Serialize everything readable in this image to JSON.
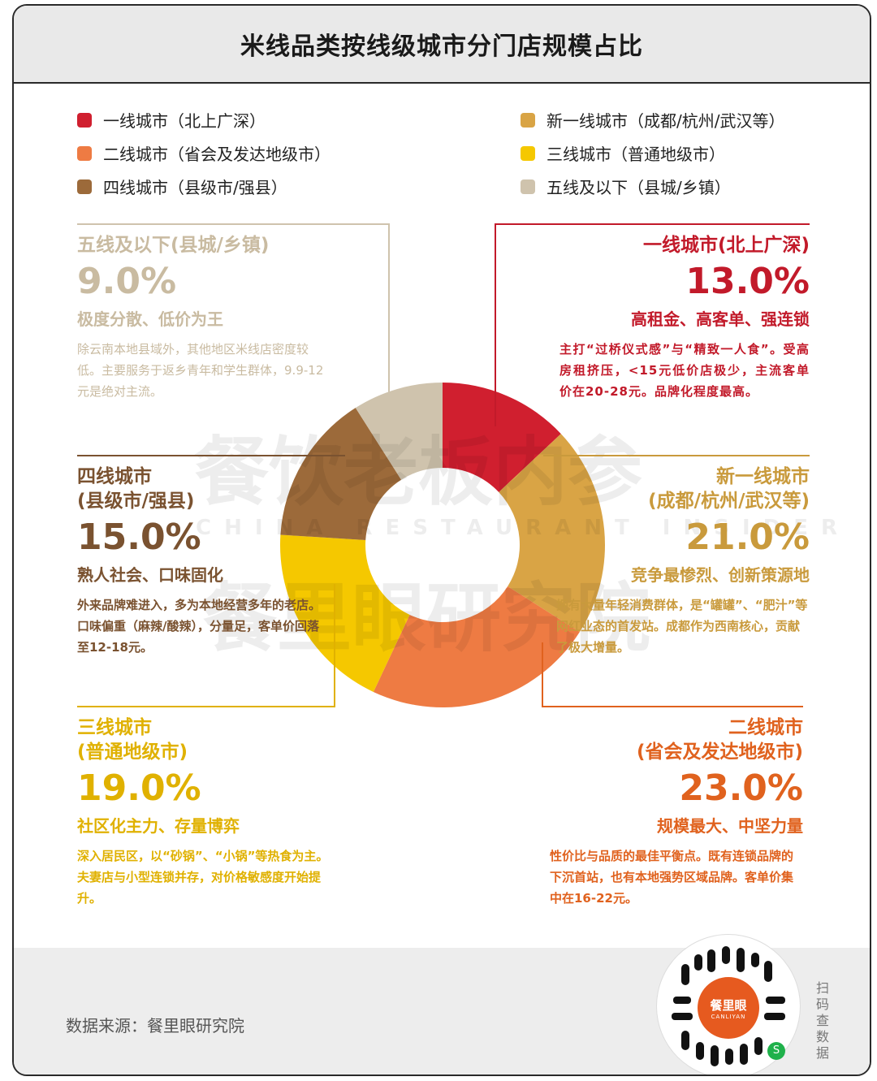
{
  "title": "米线品类按线级城市分门店规模占比",
  "legend": [
    {
      "label": "一线城市（北上广深）",
      "color": "#d01f2f"
    },
    {
      "label": "新一线城市（成都/杭州/武汉等）",
      "color": "#d9a445"
    },
    {
      "label": "二线城市（省会及发达地级市）",
      "color": "#ee7b43"
    },
    {
      "label": "三线城市（普通地级市）",
      "color": "#f5c800"
    },
    {
      "label": "四线城市（县级市/强县）",
      "color": "#9c6a3a"
    },
    {
      "label": "五线及以下（县城/乡镇）",
      "color": "#cfc3ad"
    }
  ],
  "blocks": {
    "tier5": {
      "title": "五线及以下(县城/乡镇)",
      "pct": "9.0%",
      "sub": "极度分散、低价为王",
      "desc": "除云南本地县域外，其他地区米线店密度较低。主要服务于返乡青年和学生群体，9.9-12元是绝对主流。",
      "color": "#c9bba1"
    },
    "tier1": {
      "title": "一线城市(北上广深)",
      "pct": "13.0%",
      "sub": "高租金、高客单、强连锁",
      "desc": "主打“过桥仪式感”与“精致一人食”。受高房租挤压，<15元低价店极少，主流客单价在20-28元。品牌化程度最高。",
      "color": "#c21a2a"
    },
    "tier4": {
      "title": "四线城市",
      "title2": "(县级市/强县)",
      "pct": "15.0%",
      "sub": "熟人社会、口味固化",
      "desc": "外来品牌难进入，多为本地经营多年的老店。口味偏重（麻辣/酸辣），分量足，客单价回落至12-18元。",
      "color": "#7a5230"
    },
    "newtier1": {
      "title": "新一线城市",
      "title2": "(成都/杭州/武汉等)",
      "pct": "21.0%",
      "sub": "竞争最惨烈、创新策源地",
      "desc": "拥有大量年轻消费群体，是“罐罐”、“肥汁”等网红业态的首发站。成都作为西南核心，贡献了极大增量。",
      "color": "#c99a3c"
    },
    "tier3": {
      "title": "三线城市",
      "title2": "(普通地级市)",
      "pct": "19.0%",
      "sub": "社区化主力、存量博弈",
      "desc": "深入居民区，以“砂锅”、“小锅”等热食为主。夫妻店与小型连锁并存，对价格敏感度开始提升。",
      "color": "#e0b100"
    },
    "tier2": {
      "title": "二线城市",
      "title2": "(省会及发达地级市)",
      "pct": "23.0%",
      "sub": "规模最大、中坚力量",
      "desc": "性价比与品质的最佳平衡点。既有连锁品牌的下沉首站，也有本地强势区域品牌。客单价集中在16-22元。",
      "color": "#e0621e"
    }
  },
  "chart_data": {
    "type": "pie",
    "title": "米线品类按线级城市分门店规模占比",
    "categories": [
      "一线城市（北上广深）",
      "新一线城市（成都/杭州/武汉等）",
      "二线城市（省会及发达地级市）",
      "三线城市（普通地级市）",
      "四线城市（县级市/强县）",
      "五线及以下（县城/乡镇）"
    ],
    "values": [
      13.0,
      21.0,
      23.0,
      19.0,
      15.0,
      9.0
    ],
    "unit": "%",
    "colors": [
      "#d01f2f",
      "#d9a445",
      "#ee7b43",
      "#f5c800",
      "#9c6a3a",
      "#cfc3ad"
    ],
    "donut": true
  },
  "watermark": {
    "cn1": "餐饮老板内参",
    "en": "CHINA RESTAURANT INSIDER",
    "cn2": "餐里眼研究院"
  },
  "footer": {
    "source": "数据来源：餐里眼研究院",
    "scan": "扫码查数据",
    "badge_name": "餐里眼",
    "badge_en": "CANLIYAN",
    "badge_corner": "S"
  }
}
